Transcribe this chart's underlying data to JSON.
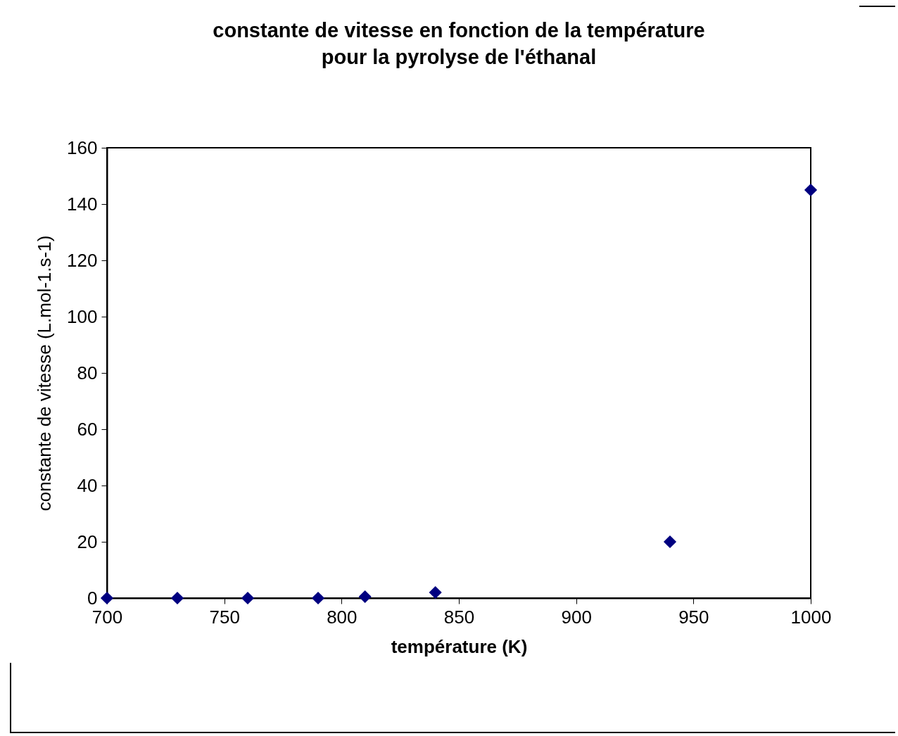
{
  "chart_data": {
    "type": "scatter",
    "title": "constante de vitesse en fonction de la température\npour la pyrolyse de l'éthanal",
    "xlabel": "température (K)",
    "ylabel": "constante de vitesse (L.mol-1.s-1)",
    "x": [
      700,
      730,
      760,
      790,
      810,
      840,
      940,
      1000
    ],
    "series": [
      {
        "color": "#000080",
        "values": [
          0,
          0,
          0,
          0,
          0.5,
          2,
          20,
          145
        ]
      }
    ],
    "xlim": [
      700,
      1000
    ],
    "xticks": [
      700,
      750,
      800,
      850,
      900,
      950,
      1000
    ],
    "ylim": [
      0,
      160
    ],
    "yticks": [
      0,
      20,
      40,
      60,
      80,
      100,
      120,
      140,
      160
    ],
    "grid": false,
    "legend": false,
    "marker": "diamond"
  }
}
